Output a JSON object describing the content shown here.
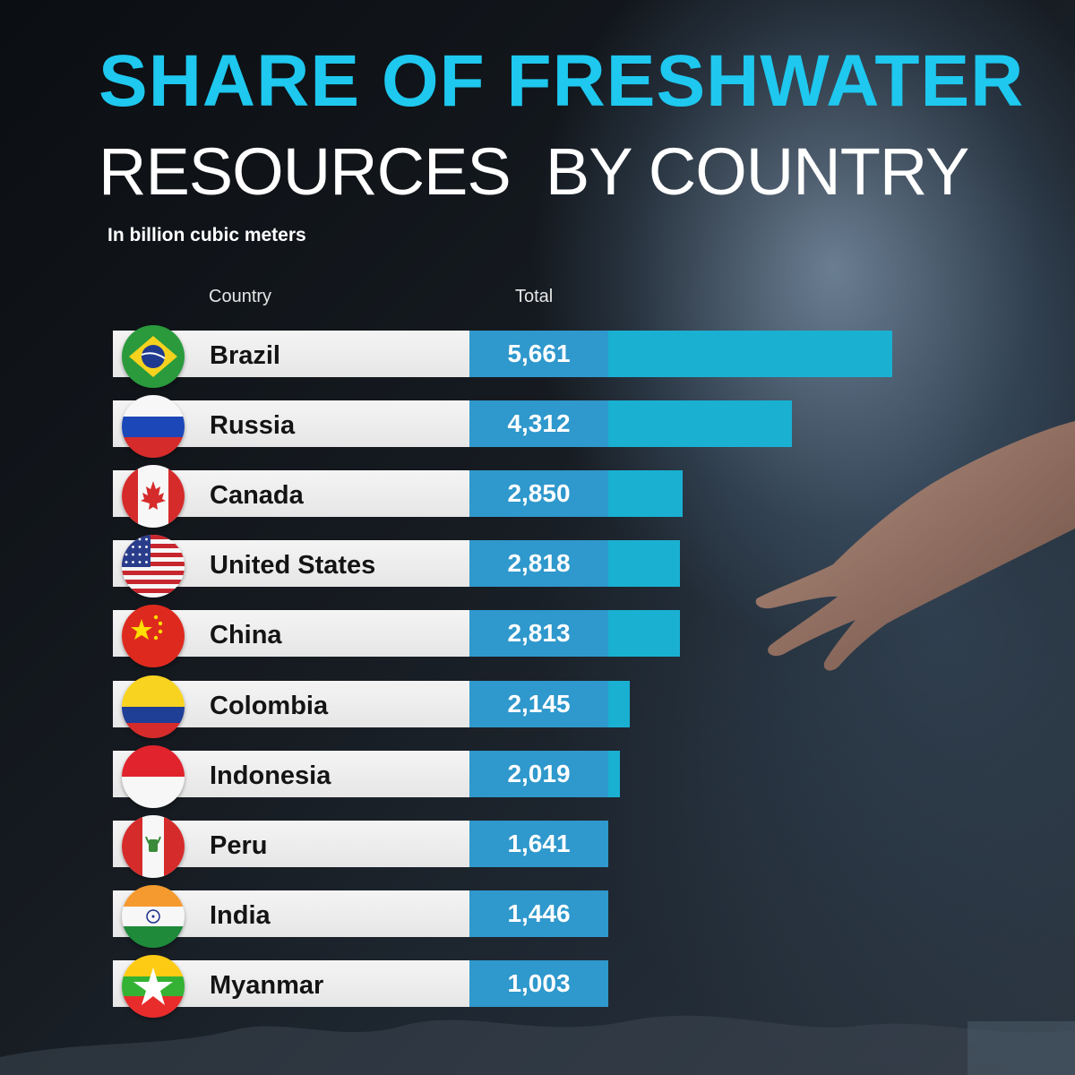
{
  "title_line1": "SHARE OF FRESHWATER",
  "title_line2": "RESOURCES  BY COUNTRY",
  "subtitle": "In billion cubic meters",
  "column_headers": {
    "country": "Country",
    "total": "Total"
  },
  "colors": {
    "title_accent": "#1ec8ef",
    "bar": "#1ab0d2",
    "value_box": "#2f98cc",
    "label_box": "#eeeeee"
  },
  "chart_data": {
    "type": "bar",
    "orientation": "horizontal",
    "title": "SHARE OF FRESHWATER RESOURCES BY COUNTRY",
    "subtitle": "In billion cubic meters",
    "categories": [
      "Brazil",
      "Russia",
      "Canada",
      "United States",
      "China",
      "Colombia",
      "Indonesia",
      "Peru",
      "India",
      "Myanmar"
    ],
    "values": [
      5661,
      4312,
      2850,
      2818,
      2813,
      2145,
      2019,
      1641,
      1446,
      1003
    ],
    "value_labels": [
      "5,661",
      "4,312",
      "2,850",
      "2,818",
      "2,813",
      "2,145",
      "2,019",
      "1,641",
      "1,446",
      "1,003"
    ],
    "flag_icons": [
      "brazil-flag-icon",
      "russia-flag-icon",
      "canada-flag-icon",
      "united-states-flag-icon",
      "china-flag-icon",
      "colombia-flag-icon",
      "indonesia-flag-icon",
      "peru-flag-icon",
      "india-flag-icon",
      "myanmar-flag-icon"
    ]
  }
}
